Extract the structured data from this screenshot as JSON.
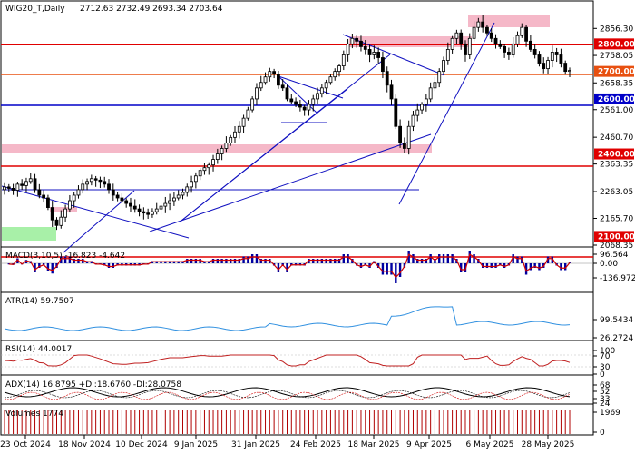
{
  "window": {
    "title": "WIG20_T,Daily",
    "ohlc": "2712.63 2732.49 2693.34 2703.64"
  },
  "colors": {
    "bg": "#ffffff",
    "border": "#000000",
    "up": "#000000",
    "down": "#000000",
    "red_line": "#e00000",
    "orange_line": "#e85010",
    "blue_line": "#0000c8",
    "trend_line": "#1010c0",
    "pink_zone": "#f5b8c8",
    "green_zone": "#a8f0a8",
    "macd_hist": "#0000a0",
    "macd_signal": "#d00000",
    "atr_line": "#3090e0",
    "rsi_line": "#c02020",
    "adx_main": "#000000",
    "adx_plus": "#000000",
    "adx_minus": "#d00000",
    "volume": "#b00000",
    "tag_red": "#e00000",
    "tag_orange": "#e85010",
    "tag_blue": "#0000c8"
  },
  "chart_data": [
    {
      "type": "candlestick",
      "series": [
        {
          "name": "WIG20_T,Daily"
        }
      ],
      "ylim": [
        2068.35,
        2953.0
      ],
      "y_ticks": [
        "2856.30",
        "2758.05",
        "2658.35",
        "2561.00",
        "2460.70",
        "2363.35",
        "2263.05",
        "2165.70",
        "2068.35"
      ],
      "levels": [
        {
          "value": 2800.0,
          "label": "2800.00",
          "color": "red"
        },
        {
          "value": 2700.0,
          "label": "2700.00",
          "color": "orange"
        },
        {
          "value": 2600.0,
          "label": "2600.00",
          "color": "blue"
        },
        {
          "value": 2400.0,
          "label": "2400.00",
          "color": "red"
        },
        {
          "value": 2100.0,
          "label": "2100.00",
          "color": "red"
        }
      ],
      "x_labels": [
        "23 Oct 2024",
        "18 Nov 2024",
        "10 Dec 2024",
        "9 Jan 2025",
        "31 Jan 2025",
        "24 Feb 2025",
        "18 Mar 2025",
        "9 Apr 2025",
        "6 May 2025",
        "28 May 2025"
      ],
      "closes": [
        2280,
        2275,
        2268,
        2290,
        2285,
        2300,
        2310,
        2270,
        2250,
        2240,
        2205,
        2160,
        2140,
        2170,
        2200,
        2230,
        2250,
        2270,
        2290,
        2300,
        2310,
        2305,
        2300,
        2290,
        2270,
        2250,
        2240,
        2230,
        2220,
        2210,
        2200,
        2190,
        2185,
        2180,
        2190,
        2200,
        2210,
        2220,
        2230,
        2240,
        2250,
        2260,
        2280,
        2300,
        2320,
        2340,
        2350,
        2360,
        2380,
        2400,
        2420,
        2440,
        2460,
        2480,
        2500,
        2530,
        2560,
        2600,
        2640,
        2660,
        2680,
        2700,
        2690,
        2650,
        2640,
        2600,
        2590,
        2580,
        2570,
        2560,
        2580,
        2600,
        2620,
        2640,
        2660,
        2680,
        2700,
        2720,
        2760,
        2800,
        2820,
        2810,
        2790,
        2780,
        2760,
        2770,
        2750,
        2700,
        2650,
        2600,
        2500,
        2440,
        2420,
        2500,
        2540,
        2560,
        2580,
        2600,
        2640,
        2660,
        2700,
        2740,
        2780,
        2820,
        2840,
        2800,
        2760,
        2820,
        2860,
        2880,
        2860,
        2840,
        2820,
        2800,
        2790,
        2770,
        2760,
        2800,
        2830,
        2860,
        2810,
        2780,
        2760,
        2730,
        2710,
        2740,
        2770,
        2760,
        2730,
        2700,
        2703.64
      ],
      "indicators": {
        "macd": {
          "label": "MACD(3,10,5) -16.823 -4.642",
          "ticks": [
            "96.564",
            "0.00",
            "-136.972"
          ]
        },
        "atr": {
          "label": "ATR(14) 59.7507",
          "ticks": [
            "99.5434",
            "26.2724"
          ]
        },
        "rsi": {
          "label": "RSI(14) 44.0017",
          "ticks": [
            "100",
            "70",
            "30",
            "0"
          ]
        },
        "adx": {
          "label": "ADX(14) 16.8795 +DI:18.6760 -DI:28.0758",
          "ticks": [
            "68",
            "52",
            "33",
            "24"
          ]
        },
        "volume": {
          "label": "Volumes 1774",
          "ticks": [
            "1969",
            "0"
          ]
        }
      }
    }
  ]
}
